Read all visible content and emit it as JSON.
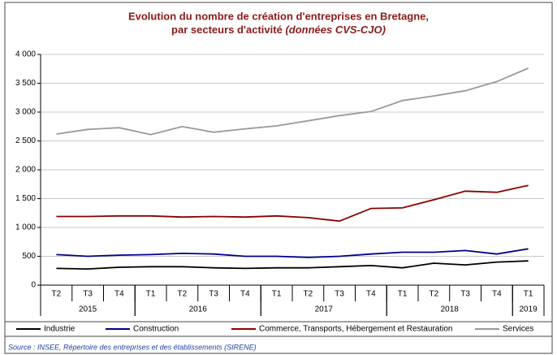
{
  "chart_data": {
    "type": "line",
    "title": "Evolution du nombre de création d'entreprises en Bretagne,",
    "subtitle": "par secteurs d'activité",
    "subtitle_italic": "(données CVS-CJO)",
    "source": "Source : INSEE, Répertoire des entreprises et des établissements (SIRENE)",
    "categories": [
      "T2",
      "T3",
      "T4",
      "T1",
      "T2",
      "T3",
      "T4",
      "T1",
      "T2",
      "T3",
      "T4",
      "T1",
      "T2",
      "T3",
      "T4",
      "T1"
    ],
    "year_groups": [
      {
        "label": "2015",
        "count": 3
      },
      {
        "label": "2016",
        "count": 4
      },
      {
        "label": "2017",
        "count": 4
      },
      {
        "label": "2018",
        "count": 4
      },
      {
        "label": "2019",
        "count": 1
      }
    ],
    "series": [
      {
        "name": "Industrie",
        "color": "#000000",
        "values": [
          290,
          280,
          310,
          320,
          320,
          300,
          290,
          300,
          300,
          320,
          340,
          300,
          380,
          350,
          400,
          420
        ]
      },
      {
        "name": "Construction",
        "color": "#00008b",
        "values": [
          530,
          500,
          520,
          530,
          550,
          540,
          500,
          500,
          480,
          500,
          540,
          570,
          570,
          600,
          540,
          630
        ]
      },
      {
        "name": "Commerce, Transports, Hébergement et Restauration",
        "color": "#8b0000",
        "values": [
          1190,
          1190,
          1200,
          1200,
          1180,
          1190,
          1180,
          1200,
          1170,
          1110,
          1330,
          1340,
          1480,
          1630,
          1610,
          1730
        ]
      },
      {
        "name": "Services",
        "color": "#999999",
        "values": [
          2620,
          2700,
          2730,
          2610,
          2750,
          2650,
          2710,
          2760,
          2850,
          2940,
          3010,
          3200,
          3280,
          3370,
          3530,
          3760
        ]
      }
    ],
    "ylim": [
      0,
      4000
    ],
    "yticks": [
      0,
      500,
      {
        "value": 1000,
        "label": "1 000"
      },
      {
        "value": 1500,
        "label": "1 500"
      },
      {
        "value": 2000,
        "label": "2 000"
      },
      {
        "value": 2500,
        "label": "2 500"
      },
      {
        "value": 3000,
        "label": "3 000"
      },
      {
        "value": 3500,
        "label": "3 500"
      },
      {
        "value": 4000,
        "label": "4 000"
      }
    ],
    "grid": true
  }
}
